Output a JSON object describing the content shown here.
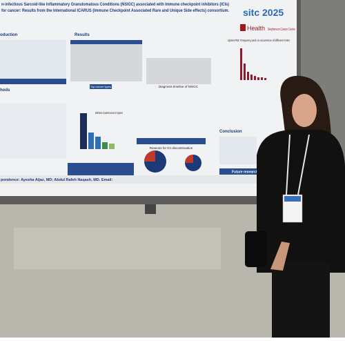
{
  "poster": {
    "title_line1": "n-infectious Sarcoid-like Inflammatory Granulomatous Conditions (NSIGC) associated with Immune checkpoint inhibitors (ICIs)",
    "title_line2": "for cancer: Results from the International ICARUS (Immune Checkpoint Associated Rare and Unique Side effects) consortium.",
    "logo_sitc": "sitc 2025",
    "logo_health": "Health",
    "logo_center": "Stephenson Cancer Center",
    "sections": {
      "introduction": "oduction",
      "results": "Results",
      "methods": "hods",
      "conclusion": "Conclusion",
      "future_research": "Future research"
    },
    "figures": {
      "top_cancer_types": "Top cancer types",
      "diagnosis_timeline": "Diagnosis timeline of NSIGC",
      "regimens": "Distribution of patients across ICI regimens",
      "discontinuation": "Reasons for ICI discontinuation",
      "upset": "UpSet Plot: Frequency and co-occurrence of different irAEs"
    },
    "correspondence": "pondence: Ayesha Aijaz, MD; Abdul Rafeh Naqash, MD. Email:"
  }
}
